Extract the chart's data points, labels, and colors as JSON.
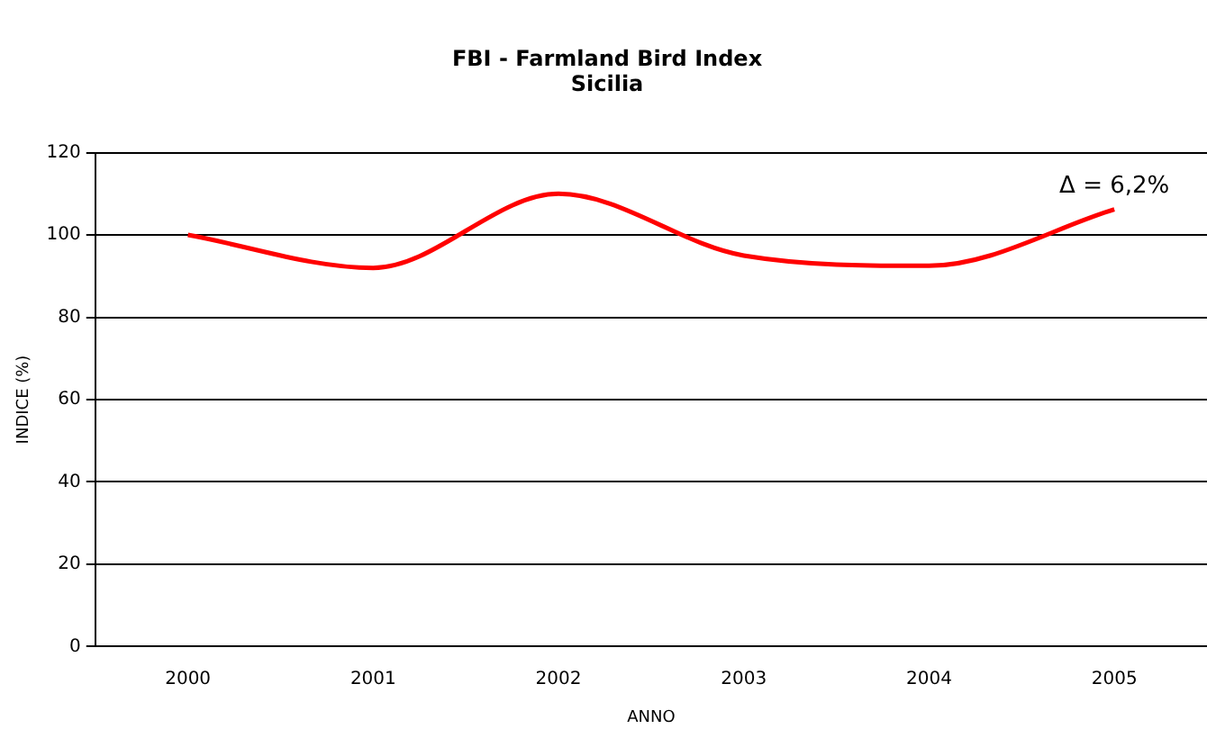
{
  "chart_data": {
    "type": "line",
    "title": "FBI - Farmland Bird Index",
    "subtitle": "Sicilia",
    "xlabel": "ANNO",
    "ylabel": "INDICE (%)",
    "categories": [
      "2000",
      "2001",
      "2002",
      "2003",
      "2004",
      "2005"
    ],
    "series": [
      {
        "color": "#ff0000",
        "values": [
          100,
          92,
          110,
          95,
          92.5,
          106.2
        ]
      }
    ],
    "ylim": [
      0,
      120
    ],
    "yticks": [
      0,
      20,
      40,
      60,
      80,
      100,
      120
    ],
    "grid": "y",
    "legend": false,
    "marker": "none",
    "line_style": "solid",
    "annotations": [
      {
        "text": "Δ = 6,2%",
        "x": "2005",
        "y": 106.2
      }
    ]
  }
}
